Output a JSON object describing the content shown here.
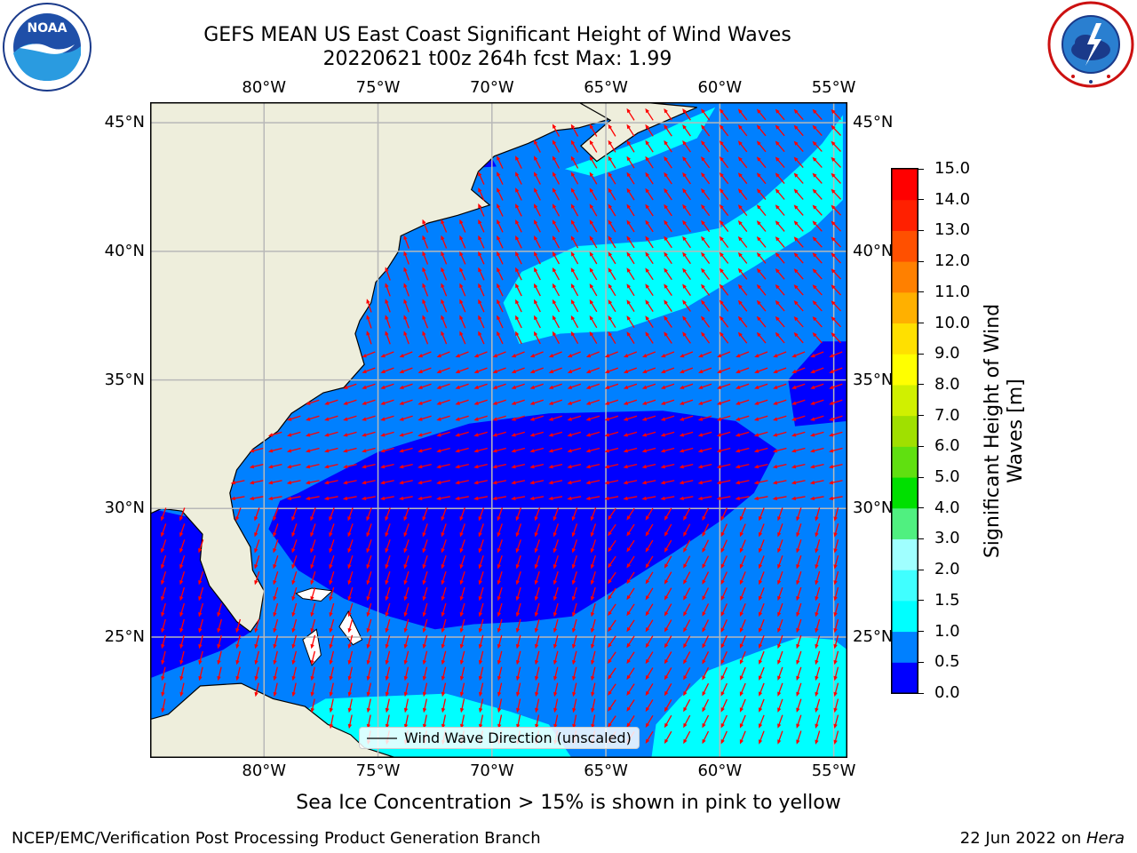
{
  "title": {
    "line1": "GEFS MEAN US East Coast Significant Height of Wind Waves",
    "line2": "20220621 t00z 264h fcst   Max: 1.99"
  },
  "map": {
    "lon_labels": [
      "80°W",
      "75°W",
      "70°W",
      "65°W",
      "60°W",
      "55°W"
    ],
    "lat_labels": [
      "45°N",
      "40°N",
      "35°N",
      "30°N",
      "25°N"
    ],
    "lon_range": [
      -85,
      -54.4
    ],
    "lat_range": [
      20.3,
      45.8
    ],
    "land_color": "#eeeedc",
    "legend_label": "Wind Wave Direction (unscaled)",
    "arrow_color": "#ff0000"
  },
  "colorbar": {
    "label": "Significant Height of Wind Waves [m]",
    "ticks": [
      "0.0",
      "0.5",
      "1.0",
      "1.5",
      "2.0",
      "3.0",
      "4.0",
      "5.0",
      "6.0",
      "7.0",
      "8.0",
      "9.0",
      "10.0",
      "11.0",
      "12.0",
      "13.0",
      "14.0",
      "15.0"
    ],
    "colors": [
      "#0000ff",
      "#0080ff",
      "#00ffff",
      "#40ffff",
      "#a0ffff",
      "#50f080",
      "#00e000",
      "#60e010",
      "#a0e000",
      "#d0f000",
      "#ffff00",
      "#ffe000",
      "#ffb000",
      "#ff8000",
      "#ff5000",
      "#ff2000",
      "#ff0000"
    ]
  },
  "ice_note": "Sea Ice Concentration > 15% is shown in pink to yellow",
  "footer": {
    "left": "NCEP/EMC/Verification Post Processing Product Generation Branch",
    "date": "22 Jun 2022 on ",
    "machine": "Hera"
  },
  "logos": {
    "noaa": "NOAA",
    "nws": "NATIONAL WEATHER SERVICE"
  }
}
